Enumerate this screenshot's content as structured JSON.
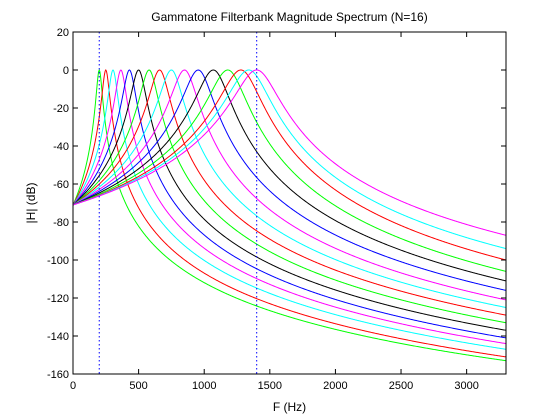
{
  "chart_data": {
    "type": "line",
    "title": "Gammatone Filterbank Magnitude Spectrum (N=16)",
    "xlabel": "F (Hz)",
    "ylabel": "|H| (dB)",
    "xlim": [
      0,
      3300
    ],
    "ylim": [
      -160,
      20
    ],
    "xticks": [
      0,
      500,
      1000,
      1500,
      2000,
      2500,
      3000
    ],
    "yticks": [
      20,
      0,
      -20,
      -40,
      -60,
      -80,
      -100,
      -120,
      -140,
      -160
    ],
    "grid": false,
    "legend": "none",
    "reference_lines": [
      {
        "x": 200,
        "style": "dotted",
        "color": "#0000ff"
      },
      {
        "x": 1400,
        "style": "dotted",
        "color": "#0000ff"
      }
    ],
    "series": [
      {
        "color": "#00ff00",
        "peak_hz": 200,
        "db_at_0": -71,
        "db_at_3300": -153
      },
      {
        "color": "#ff0000",
        "peak_hz": 250,
        "db_at_0": -71,
        "db_at_3300": -151
      },
      {
        "color": "#00ffff",
        "peak_hz": 305,
        "db_at_0": -71,
        "db_at_3300": -147
      },
      {
        "color": "#ff00ff",
        "peak_hz": 365,
        "db_at_0": -71,
        "db_at_3300": -144
      },
      {
        "color": "#0000ff",
        "peak_hz": 430,
        "db_at_0": -71,
        "db_at_3300": -141
      },
      {
        "color": "#000000",
        "peak_hz": 500,
        "db_at_0": -71,
        "db_at_3300": -137
      },
      {
        "color": "#00ff00",
        "peak_hz": 580,
        "db_at_0": -71,
        "db_at_3300": -133
      },
      {
        "color": "#ff0000",
        "peak_hz": 660,
        "db_at_0": -71,
        "db_at_3300": -129
      },
      {
        "color": "#00ffff",
        "peak_hz": 750,
        "db_at_0": -71,
        "db_at_3300": -125
      },
      {
        "color": "#ff00ff",
        "peak_hz": 850,
        "db_at_0": -71,
        "db_at_3300": -121
      },
      {
        "color": "#0000ff",
        "peak_hz": 955,
        "db_at_0": -71,
        "db_at_3300": -116
      },
      {
        "color": "#000000",
        "peak_hz": 1070,
        "db_at_0": -71,
        "db_at_3300": -111
      },
      {
        "color": "#00ff00",
        "peak_hz": 1180,
        "db_at_0": -71,
        "db_at_3300": -106
      },
      {
        "color": "#ff0000",
        "peak_hz": 1280,
        "db_at_0": -71,
        "db_at_3300": -100
      },
      {
        "color": "#00ffff",
        "peak_hz": 1340,
        "db_at_0": -71,
        "db_at_3300": -94
      },
      {
        "color": "#ff00ff",
        "peak_hz": 1400,
        "db_at_0": -71,
        "db_at_3300": -87
      }
    ]
  }
}
